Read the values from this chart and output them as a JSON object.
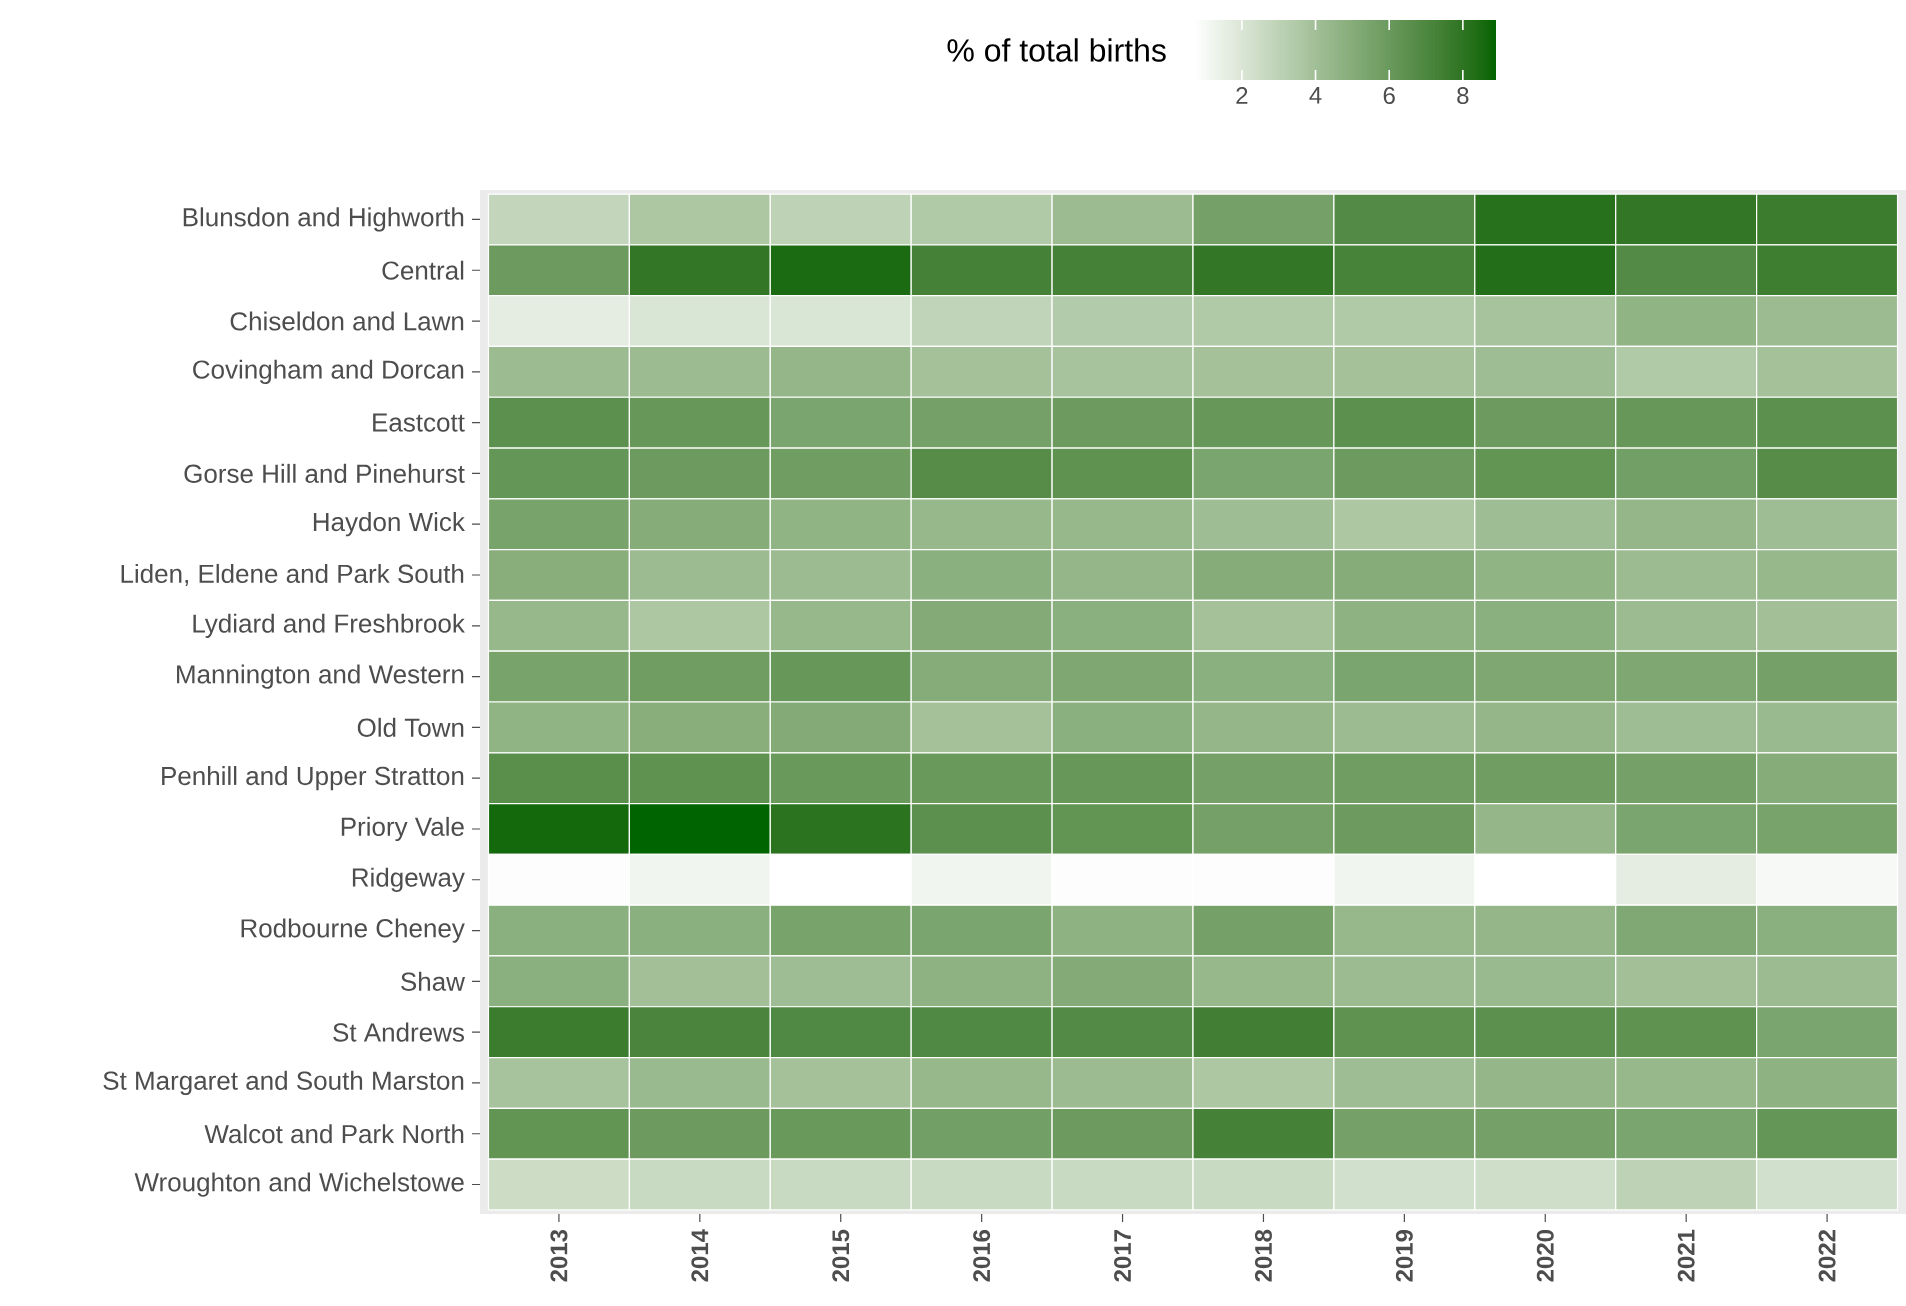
{
  "chart_data": {
    "type": "heatmap",
    "clabel": "% of total births",
    "categories": [
      "2013",
      "2014",
      "2015",
      "2016",
      "2017",
      "2018",
      "2019",
      "2020",
      "2021",
      "2022"
    ],
    "y_categories": [
      "Blunsdon and Highworth",
      "Central",
      "Chiseldon and Lawn",
      "Covingham and Dorcan",
      "Eastcott",
      "Gorse Hill and Pinehurst",
      "Haydon Wick",
      "Liden, Eldene and Park South",
      "Lydiard and Freshbrook",
      "Mannington and Western",
      "Old Town",
      "Penhill and Upper Stratton",
      "Priory Vale",
      "Ridgeway",
      "Rodbourne Cheney",
      "Shaw",
      "St Andrews",
      "St Margaret and South Marston",
      "Walcot and Park North",
      "Wroughton and Wichelstowe"
    ],
    "cells": [
      [
        2.8,
        3.6,
        3.0,
        3.5,
        4.2,
        5.6,
        6.8,
        8.2,
        7.9,
        7.6
      ],
      [
        5.9,
        7.9,
        8.5,
        7.3,
        7.3,
        7.9,
        7.2,
        8.3,
        6.8,
        7.5
      ],
      [
        1.6,
        2.0,
        2.0,
        2.9,
        3.4,
        3.5,
        3.5,
        3.8,
        4.6,
        4.2
      ],
      [
        4.2,
        4.2,
        4.5,
        3.9,
        3.8,
        3.9,
        3.9,
        4.1,
        3.5,
        3.9
      ],
      [
        6.5,
        6.1,
        5.4,
        5.6,
        5.9,
        6.1,
        6.5,
        5.9,
        6.1,
        6.5
      ],
      [
        6.2,
        5.9,
        5.8,
        6.7,
        6.4,
        5.4,
        5.9,
        6.3,
        5.7,
        6.7
      ],
      [
        5.5,
        5.0,
        4.6,
        4.4,
        4.4,
        4.1,
        3.6,
        4.1,
        4.5,
        4.1
      ],
      [
        4.9,
        4.2,
        4.2,
        4.8,
        4.5,
        5.0,
        5.0,
        4.6,
        4.2,
        4.4
      ],
      [
        4.4,
        3.6,
        4.4,
        5.1,
        4.8,
        3.9,
        4.7,
        4.8,
        4.2,
        4.0
      ],
      [
        5.5,
        5.8,
        6.1,
        5.0,
        5.3,
        4.8,
        5.4,
        5.3,
        5.3,
        5.6
      ],
      [
        4.6,
        4.9,
        5.1,
        3.9,
        4.8,
        4.5,
        4.2,
        4.5,
        4.1,
        4.3
      ],
      [
        6.6,
        6.4,
        6.0,
        6.0,
        6.1,
        5.6,
        5.8,
        5.8,
        5.6,
        5.0
      ],
      [
        8.6,
        8.9,
        8.1,
        6.5,
        6.3,
        5.6,
        5.9,
        4.5,
        5.4,
        5.5
      ],
      [
        0.8,
        1.2,
        0.7,
        1.2,
        0.8,
        0.8,
        1.2,
        0.7,
        1.6,
        1.0
      ],
      [
        4.8,
        4.8,
        5.5,
        5.4,
        4.7,
        5.6,
        4.4,
        4.5,
        5.2,
        4.8
      ],
      [
        4.8,
        4.0,
        4.1,
        4.7,
        5.1,
        4.4,
        4.2,
        4.3,
        4.0,
        4.2
      ],
      [
        7.6,
        7.1,
        6.9,
        6.9,
        6.8,
        7.4,
        6.4,
        6.5,
        6.4,
        5.4
      ],
      [
        3.8,
        4.3,
        3.9,
        4.4,
        4.2,
        3.6,
        4.1,
        4.5,
        4.4,
        4.7
      ],
      [
        6.3,
        5.9,
        6.0,
        5.7,
        5.9,
        7.3,
        5.6,
        5.6,
        5.4,
        6.2
      ],
      [
        2.5,
        2.6,
        2.6,
        2.6,
        2.6,
        2.6,
        2.3,
        2.4,
        3.0,
        2.3
      ]
    ],
    "clim": [
      0.7,
      8.9
    ],
    "cticks": [
      2,
      4,
      6,
      8
    ]
  }
}
